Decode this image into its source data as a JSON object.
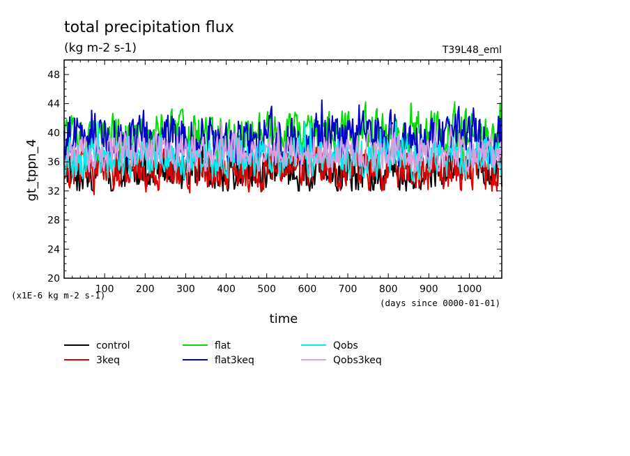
{
  "chart_data": {
    "type": "line",
    "title": "total precipitation flux",
    "subtitle": "(kg m-2 s-1)",
    "corner_label": "T39L48_eml",
    "xlabel": "time",
    "x_units": "(days since 0000-01-01)",
    "ylabel": "gt_tppn_4",
    "y_units": "(x1E-6 kg m-2 s-1)",
    "xlim": [
      0,
      1080
    ],
    "ylim": [
      20,
      50
    ],
    "x_ticks": [
      100,
      200,
      300,
      400,
      500,
      600,
      700,
      800,
      900,
      1000
    ],
    "y_ticks": [
      20,
      24,
      28,
      32,
      36,
      40,
      44,
      48
    ],
    "grid": false,
    "legend_position": "bottom",
    "series": [
      {
        "name": "control",
        "color": "#000000",
        "mean": 34.8,
        "amp": 1.7,
        "min": 32.0,
        "max": 39.0,
        "seed": 11
      },
      {
        "name": "3keq",
        "color": "#e00000",
        "mean": 35.0,
        "amp": 1.8,
        "min": 31.5,
        "max": 39.5,
        "seed": 23
      },
      {
        "name": "flat",
        "color": "#00dd00",
        "mean": 39.5,
        "amp": 1.9,
        "min": 35.5,
        "max": 44.5,
        "seed": 37
      },
      {
        "name": "flat3keq",
        "color": "#0000cc",
        "mean": 39.2,
        "amp": 2.1,
        "min": 35.0,
        "max": 45.3,
        "seed": 41
      },
      {
        "name": "Qobs",
        "color": "#00eeee",
        "mean": 36.6,
        "amp": 1.6,
        "min": 31.5,
        "max": 41.5,
        "seed": 53
      },
      {
        "name": "Qobs3keq",
        "color": "#d8a0e0",
        "mean": 37.2,
        "amp": 1.5,
        "min": 32.0,
        "max": 41.5,
        "seed": 67
      }
    ]
  }
}
